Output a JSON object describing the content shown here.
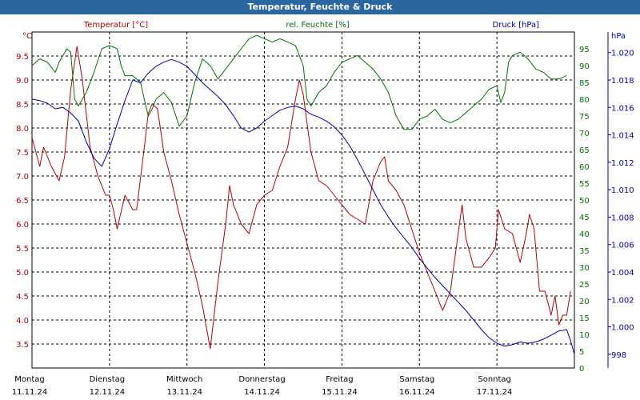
{
  "title": "Temperatur, Feuchte & Druck",
  "colors": {
    "temperature": "#b30000",
    "humidity": "#007000",
    "pressure": "#0000b0",
    "titlebar": "#2a67a0"
  },
  "chart_data": {
    "type": "line",
    "title": "Temperatur, Feuchte & Druck",
    "grid": true,
    "x_ticks": [
      {
        "day": "Montag",
        "date": "11.11.24"
      },
      {
        "day": "Dienstag",
        "date": "12.11.24"
      },
      {
        "day": "Mittwoch",
        "date": "13.11.24"
      },
      {
        "day": "Donnerstag",
        "date": "14.11.24"
      },
      {
        "day": "Freitag",
        "date": "15.11.24"
      },
      {
        "day": "Samstag",
        "date": "16.11.24"
      },
      {
        "day": "Sonntag",
        "date": "17.11.24"
      }
    ],
    "x_range_days": [
      0,
      7
    ],
    "axes": {
      "temperature": {
        "label": "Temperatur [°C]",
        "unit": "°C",
        "ylim": [
          3.0,
          10.0
        ],
        "ticks": [
          "3.5",
          "4.0",
          "4.5",
          "5.0",
          "5.5",
          "6.0",
          "6.5",
          "7.0",
          "7.5",
          "8.0",
          "8.5",
          "9.0",
          "9.5"
        ]
      },
      "humidity": {
        "label": "rel. Feuchte [%]",
        "unit": "%",
        "ylim": [
          0,
          100
        ],
        "ticks": [
          "0",
          "5",
          "10",
          "15",
          "20",
          "25",
          "30",
          "35",
          "40",
          "45",
          "50",
          "55",
          "60",
          "65",
          "70",
          "75",
          "80",
          "85",
          "90",
          "95"
        ]
      },
      "pressure": {
        "label": "Druck [hPa]",
        "unit": "hPa",
        "ylim": [
          997.0,
          1021.5
        ],
        "ticks": [
          "998",
          "1.000",
          "1.002",
          "1.004",
          "1.006",
          "1.008",
          "1.010",
          "1.012",
          "1.014",
          "1.016",
          "1.018",
          "1.020"
        ]
      }
    },
    "series": [
      {
        "name": "Temperatur [°C]",
        "axis": "temperature",
        "points": [
          [
            0.0,
            7.8
          ],
          [
            0.1,
            7.2
          ],
          [
            0.15,
            7.6
          ],
          [
            0.25,
            7.2
          ],
          [
            0.35,
            6.9
          ],
          [
            0.42,
            7.4
          ],
          [
            0.5,
            8.8
          ],
          [
            0.58,
            9.7
          ],
          [
            0.65,
            9.0
          ],
          [
            0.75,
            7.6
          ],
          [
            0.85,
            7.0
          ],
          [
            0.95,
            6.6
          ],
          [
            1.0,
            6.6
          ],
          [
            1.05,
            6.3
          ],
          [
            1.1,
            5.9
          ],
          [
            1.2,
            6.6
          ],
          [
            1.3,
            6.3
          ],
          [
            1.35,
            6.3
          ],
          [
            1.45,
            7.6
          ],
          [
            1.5,
            8.3
          ],
          [
            1.55,
            8.5
          ],
          [
            1.62,
            8.4
          ],
          [
            1.7,
            7.5
          ],
          [
            1.8,
            6.9
          ],
          [
            1.9,
            6.2
          ],
          [
            2.0,
            5.6
          ],
          [
            2.1,
            5.0
          ],
          [
            2.2,
            4.3
          ],
          [
            2.3,
            3.4
          ],
          [
            2.4,
            4.8
          ],
          [
            2.5,
            6.0
          ],
          [
            2.55,
            6.8
          ],
          [
            2.6,
            6.4
          ],
          [
            2.7,
            6.0
          ],
          [
            2.8,
            5.8
          ],
          [
            2.9,
            6.4
          ],
          [
            3.0,
            6.6
          ],
          [
            3.1,
            6.7
          ],
          [
            3.2,
            7.2
          ],
          [
            3.3,
            7.6
          ],
          [
            3.4,
            8.6
          ],
          [
            3.45,
            9.0
          ],
          [
            3.5,
            8.7
          ],
          [
            3.6,
            7.5
          ],
          [
            3.7,
            6.9
          ],
          [
            3.8,
            6.8
          ],
          [
            3.9,
            6.6
          ],
          [
            4.0,
            6.4
          ],
          [
            4.1,
            6.2
          ],
          [
            4.2,
            6.1
          ],
          [
            4.3,
            6.0
          ],
          [
            4.4,
            6.9
          ],
          [
            4.5,
            7.3
          ],
          [
            4.55,
            7.4
          ],
          [
            4.6,
            6.9
          ],
          [
            4.7,
            6.7
          ],
          [
            4.8,
            6.4
          ],
          [
            4.9,
            5.9
          ],
          [
            5.0,
            5.4
          ],
          [
            5.1,
            5.0
          ],
          [
            5.2,
            4.6
          ],
          [
            5.3,
            4.2
          ],
          [
            5.4,
            4.6
          ],
          [
            5.5,
            5.8
          ],
          [
            5.55,
            6.4
          ],
          [
            5.6,
            5.7
          ],
          [
            5.7,
            5.1
          ],
          [
            5.8,
            5.1
          ],
          [
            5.9,
            5.3
          ],
          [
            5.98,
            5.5
          ],
          [
            6.02,
            6.3
          ],
          [
            6.1,
            5.9
          ],
          [
            6.2,
            5.8
          ],
          [
            6.3,
            5.2
          ],
          [
            6.38,
            5.8
          ],
          [
            6.42,
            6.2
          ],
          [
            6.48,
            5.9
          ],
          [
            6.55,
            4.6
          ],
          [
            6.62,
            4.6
          ],
          [
            6.7,
            4.1
          ],
          [
            6.75,
            4.5
          ],
          [
            6.8,
            3.9
          ],
          [
            6.85,
            4.1
          ],
          [
            6.9,
            4.1
          ],
          [
            6.95,
            4.6
          ]
        ]
      },
      {
        "name": "rel. Feuchte [%]",
        "axis": "humidity",
        "points": [
          [
            0.0,
            90
          ],
          [
            0.1,
            92
          ],
          [
            0.2,
            91
          ],
          [
            0.3,
            88
          ],
          [
            0.35,
            91
          ],
          [
            0.45,
            95
          ],
          [
            0.5,
            94
          ],
          [
            0.55,
            80
          ],
          [
            0.6,
            78
          ],
          [
            0.7,
            82
          ],
          [
            0.8,
            88
          ],
          [
            0.9,
            95
          ],
          [
            1.0,
            96
          ],
          [
            1.1,
            95
          ],
          [
            1.15,
            90
          ],
          [
            1.2,
            87
          ],
          [
            1.3,
            87
          ],
          [
            1.4,
            85
          ],
          [
            1.45,
            80
          ],
          [
            1.5,
            75
          ],
          [
            1.55,
            77
          ],
          [
            1.6,
            80
          ],
          [
            1.7,
            82
          ],
          [
            1.8,
            79
          ],
          [
            1.9,
            72
          ],
          [
            2.0,
            75
          ],
          [
            2.1,
            85
          ],
          [
            2.2,
            92
          ],
          [
            2.3,
            90
          ],
          [
            2.4,
            86
          ],
          [
            2.5,
            89
          ],
          [
            2.6,
            92
          ],
          [
            2.7,
            95
          ],
          [
            2.8,
            98
          ],
          [
            2.9,
            99
          ],
          [
            3.0,
            98
          ],
          [
            3.1,
            97
          ],
          [
            3.2,
            98
          ],
          [
            3.3,
            97
          ],
          [
            3.4,
            96
          ],
          [
            3.5,
            90
          ],
          [
            3.55,
            80
          ],
          [
            3.6,
            78
          ],
          [
            3.7,
            82
          ],
          [
            3.8,
            84
          ],
          [
            3.9,
            88
          ],
          [
            4.0,
            91
          ],
          [
            4.1,
            92
          ],
          [
            4.2,
            93
          ],
          [
            4.3,
            91
          ],
          [
            4.4,
            89
          ],
          [
            4.5,
            86
          ],
          [
            4.6,
            82
          ],
          [
            4.7,
            75
          ],
          [
            4.8,
            71
          ],
          [
            4.9,
            71
          ],
          [
            5.0,
            74
          ],
          [
            5.1,
            75
          ],
          [
            5.2,
            77
          ],
          [
            5.3,
            74
          ],
          [
            5.4,
            73
          ],
          [
            5.5,
            74
          ],
          [
            5.6,
            76
          ],
          [
            5.7,
            78
          ],
          [
            5.8,
            80
          ],
          [
            5.9,
            83
          ],
          [
            6.0,
            84
          ],
          [
            6.05,
            79
          ],
          [
            6.1,
            82
          ],
          [
            6.15,
            91
          ],
          [
            6.2,
            93
          ],
          [
            6.3,
            94
          ],
          [
            6.4,
            92
          ],
          [
            6.5,
            89
          ],
          [
            6.6,
            88
          ],
          [
            6.7,
            86
          ],
          [
            6.8,
            86
          ],
          [
            6.9,
            87
          ]
        ]
      },
      {
        "name": "Druck [hPa]",
        "axis": "pressure",
        "points": [
          [
            0.0,
            1016.6
          ],
          [
            0.1,
            1016.5
          ],
          [
            0.2,
            1016.3
          ],
          [
            0.3,
            1015.9
          ],
          [
            0.4,
            1016.0
          ],
          [
            0.5,
            1015.6
          ],
          [
            0.6,
            1015.0
          ],
          [
            0.7,
            1013.5
          ],
          [
            0.8,
            1012.3
          ],
          [
            0.9,
            1011.7
          ],
          [
            1.0,
            1013.0
          ],
          [
            1.1,
            1014.8
          ],
          [
            1.2,
            1016.5
          ],
          [
            1.3,
            1018.0
          ],
          [
            1.4,
            1017.8
          ],
          [
            1.5,
            1018.5
          ],
          [
            1.6,
            1019.0
          ],
          [
            1.7,
            1019.3
          ],
          [
            1.8,
            1019.5
          ],
          [
            1.9,
            1019.3
          ],
          [
            2.0,
            1019.0
          ],
          [
            2.1,
            1018.4
          ],
          [
            2.2,
            1017.8
          ],
          [
            2.3,
            1017.3
          ],
          [
            2.4,
            1016.8
          ],
          [
            2.5,
            1016.2
          ],
          [
            2.6,
            1015.4
          ],
          [
            2.7,
            1014.5
          ],
          [
            2.8,
            1014.2
          ],
          [
            2.9,
            1014.5
          ],
          [
            3.0,
            1015.0
          ],
          [
            3.1,
            1015.4
          ],
          [
            3.2,
            1015.8
          ],
          [
            3.3,
            1016.0
          ],
          [
            3.4,
            1016.1
          ],
          [
            3.5,
            1015.9
          ],
          [
            3.6,
            1015.5
          ],
          [
            3.7,
            1015.3
          ],
          [
            3.8,
            1015.0
          ],
          [
            3.9,
            1014.6
          ],
          [
            4.0,
            1014.0
          ],
          [
            4.1,
            1013.2
          ],
          [
            4.2,
            1012.2
          ],
          [
            4.3,
            1011.1
          ],
          [
            4.4,
            1010.0
          ],
          [
            4.5,
            1008.9
          ],
          [
            4.6,
            1008.0
          ],
          [
            4.7,
            1007.2
          ],
          [
            4.8,
            1006.5
          ],
          [
            4.9,
            1005.8
          ],
          [
            5.0,
            1005.0
          ],
          [
            5.1,
            1004.3
          ],
          [
            5.2,
            1003.6
          ],
          [
            5.3,
            1003.0
          ],
          [
            5.4,
            1002.4
          ],
          [
            5.5,
            1001.8
          ],
          [
            5.6,
            1001.2
          ],
          [
            5.7,
            1000.5
          ],
          [
            5.8,
            999.8
          ],
          [
            5.9,
            999.2
          ],
          [
            6.0,
            998.8
          ],
          [
            6.1,
            998.6
          ],
          [
            6.2,
            998.7
          ],
          [
            6.3,
            998.9
          ],
          [
            6.4,
            998.8
          ],
          [
            6.5,
            998.9
          ],
          [
            6.6,
            999.1
          ],
          [
            6.7,
            999.4
          ],
          [
            6.8,
            999.7
          ],
          [
            6.9,
            999.8
          ],
          [
            6.95,
            999.0
          ],
          [
            7.0,
            998.0
          ]
        ]
      }
    ]
  }
}
